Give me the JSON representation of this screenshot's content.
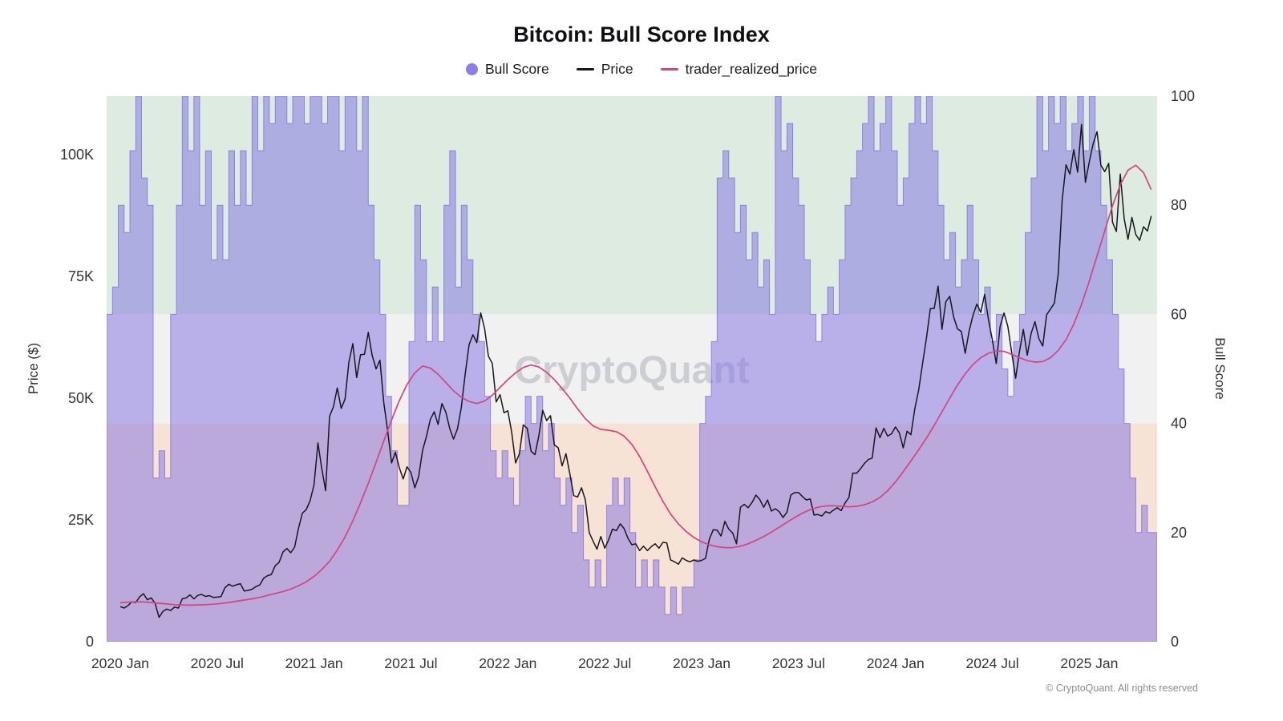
{
  "chart": {
    "title": "Bitcoin: Bull Score Index",
    "watermark": "CryptoQuant",
    "footer": "© CryptoQuant. All rights reserved"
  },
  "legend": {
    "items": [
      {
        "label": "Bull Score",
        "type": "dot",
        "color": "#8d7ce9"
      },
      {
        "label": "Price",
        "type": "line",
        "color": "#17171c"
      },
      {
        "label": "trader_realized_price",
        "type": "line",
        "color": "#d2457d"
      }
    ]
  },
  "chart_data": {
    "type": "line",
    "title": "Bitcoin: Bull Score Index",
    "x_axis": {
      "range": [
        2019.93,
        2025.35
      ],
      "tick_positions": [
        2020.0,
        2020.5,
        2021.0,
        2021.5,
        2022.0,
        2022.5,
        2023.0,
        2023.5,
        2024.0,
        2024.5,
        2025.0
      ],
      "ticks": [
        "2020 Jan",
        "2020 Jul",
        "2021 Jan",
        "2021 Jul",
        "2022 Jan",
        "2022 Jul",
        "2023 Jan",
        "2023 Jul",
        "2024 Jan",
        "2024 Jul",
        "2025 Jan"
      ]
    },
    "y_left": {
      "label": "Price ($)",
      "ticks": [
        "0",
        "25K",
        "50K",
        "75K",
        "100K"
      ],
      "tick_values": [
        0,
        25000,
        50000,
        75000,
        100000
      ],
      "max": 112000
    },
    "y_right": {
      "label": "Bull Score",
      "ticks": [
        "0",
        "20",
        "40",
        "60",
        "80",
        "100"
      ],
      "tick_values": [
        0,
        20,
        40,
        60,
        80,
        100
      ],
      "max": 100
    },
    "zones": [
      {
        "name": "bullish",
        "from": 60,
        "to": 100,
        "color": "#ddebe0"
      },
      {
        "name": "neutral",
        "from": 40,
        "to": 60,
        "color": "#f2f1f2"
      },
      {
        "name": "bearish",
        "from": 0,
        "to": 40,
        "color": "#f7e3d6"
      }
    ],
    "series": [
      {
        "name": "Bull Score",
        "axis": "right",
        "style": "step_area",
        "color": "rgba(127,112,226,0.5)",
        "stroke": "rgba(118,101,221,0.7)",
        "x_start": 2019.93,
        "x_step": 0.03,
        "values": [
          60,
          65,
          80,
          75,
          90,
          100,
          85,
          80,
          30,
          35,
          30,
          60,
          80,
          100,
          90,
          100,
          80,
          90,
          70,
          80,
          70,
          90,
          80,
          90,
          80,
          100,
          90,
          100,
          95,
          100,
          100,
          95,
          100,
          100,
          95,
          100,
          100,
          95,
          100,
          100,
          90,
          100,
          100,
          90,
          100,
          80,
          70,
          60,
          45,
          35,
          25,
          25,
          55,
          80,
          70,
          55,
          65,
          55,
          80,
          90,
          65,
          80,
          70,
          60,
          55,
          45,
          35,
          30,
          35,
          30,
          25,
          35,
          45,
          40,
          45,
          35,
          40,
          30,
          25,
          30,
          20,
          25,
          15,
          10,
          15,
          10,
          25,
          30,
          25,
          30,
          20,
          10,
          15,
          10,
          15,
          10,
          5,
          10,
          5,
          10,
          10,
          15,
          40,
          45,
          55,
          85,
          90,
          85,
          75,
          80,
          70,
          75,
          65,
          70,
          60,
          100,
          90,
          95,
          85,
          80,
          70,
          60,
          55,
          60,
          65,
          60,
          70,
          80,
          85,
          90,
          95,
          100,
          90,
          95,
          100,
          90,
          80,
          85,
          95,
          100,
          95,
          100,
          90,
          80,
          70,
          75,
          65,
          70,
          80,
          70,
          60,
          65,
          55,
          60,
          50,
          45,
          55,
          60,
          75,
          85,
          100,
          90,
          100,
          95,
          100,
          90,
          95,
          100,
          90,
          100,
          90,
          80,
          70,
          60,
          50,
          40,
          30,
          20,
          25,
          20,
          20
        ]
      },
      {
        "name": "Price",
        "axis": "left",
        "style": "line",
        "color": "#17171c",
        "x_start": 2020.0,
        "x_step": 0.02,
        "values": [
          7200,
          6900,
          7400,
          8200,
          8050,
          9200,
          9850,
          8600,
          9000,
          7900,
          5000,
          6200,
          6700,
          6400,
          7100,
          6900,
          8800,
          9000,
          9600,
          8800,
          9500,
          9700,
          9300,
          9450,
          9100,
          9150,
          9250,
          11050,
          11800,
          11400,
          11700,
          11900,
          10400,
          10550,
          10750,
          11300,
          11650,
          13050,
          13550,
          13800,
          15600,
          16300,
          18400,
          19150,
          18250,
          19400,
          23300,
          26400,
          27100,
          29000,
          32200,
          40800,
          35500,
          31000,
          46300,
          48200,
          52100,
          47900,
          49800,
          57400,
          61200,
          54200,
          58900,
          59000,
          63500,
          58800,
          56000,
          57800,
          49100,
          43200,
          36700,
          38900,
          35700,
          33400,
          35900,
          34700,
          31600,
          33900,
          39300,
          42100,
          45600,
          47200,
          44600,
          48900,
          47100,
          43800,
          41600,
          43700,
          48100,
          54900,
          61000,
          63000,
          61400,
          67500,
          64300,
          58600,
          57100,
          49200,
          50700,
          47000,
          47400,
          43000,
          36700,
          38600,
          44500,
          43800,
          39100,
          38400,
          42300,
          47500,
          45400,
          46400,
          40400,
          39800,
          36100,
          38600,
          34400,
          30000,
          29700,
          31600,
          29100,
          22400,
          20600,
          19000,
          21600,
          19200,
          20900,
          23100,
          22800,
          24200,
          23200,
          21200,
          19900,
          20100,
          18700,
          19600,
          18700,
          19500,
          20100,
          19200,
          20400,
          20300,
          16800,
          16400,
          15900,
          17200,
          16700,
          16400,
          16800,
          16500,
          16700,
          17100,
          21100,
          23000,
          22900,
          21700,
          24700,
          23100,
          22300,
          20100,
          27600,
          28200,
          27500,
          28600,
          30100,
          29200,
          27600,
          29100,
          26800,
          27300,
          26700,
          25500,
          26600,
          30100,
          30600,
          30600,
          29800,
          29100,
          29300,
          26000,
          26100,
          25800,
          26700,
          26400,
          27000,
          27500,
          26900,
          28500,
          29600,
          34600,
          34600,
          35500,
          36600,
          37400,
          37700,
          43900,
          41900,
          43800,
          42200,
          42700,
          44100,
          42900,
          39800,
          43200,
          42500,
          47900,
          51700,
          57100,
          62400,
          68400,
          68400,
          73000,
          64100,
          69800,
          70900,
          66700,
          64200,
          63700,
          59200,
          63800,
          67000,
          69300,
          67600,
          71300,
          66100,
          61900,
          57100,
          64700,
          67500,
          64700,
          59300,
          54100,
          59600,
          64100,
          58800,
          63300,
          65700,
          62200,
          60700,
          67100,
          68300,
          69500,
          75500,
          90600,
          97900,
          96000,
          101000,
          96400,
          106200,
          94300,
          98500,
          102200,
          104700,
          97800,
          96500,
          98200,
          86100,
          84200,
          96000,
          86900,
          82600,
          87100,
          83600,
          82400,
          85200,
          84300,
          87400
        ]
      },
      {
        "name": "trader_realized_price",
        "axis": "left",
        "style": "line",
        "color": "#d2457d",
        "x_start": 2020.0,
        "x_step": 0.04,
        "values": [
          8000,
          8100,
          8200,
          8150,
          8050,
          7900,
          7750,
          7600,
          7550,
          7500,
          7550,
          7600,
          7700,
          7850,
          8050,
          8300,
          8550,
          8800,
          9100,
          9500,
          9900,
          10300,
          10800,
          11500,
          12300,
          13400,
          14800,
          16500,
          18800,
          21500,
          24800,
          28500,
          32500,
          36800,
          41200,
          45500,
          49500,
          52800,
          55200,
          56600,
          56200,
          54900,
          53200,
          51500,
          50200,
          49300,
          48900,
          49400,
          50600,
          52200,
          53800,
          55200,
          56300,
          56800,
          56400,
          55300,
          53800,
          52000,
          50000,
          47800,
          45800,
          44300,
          43600,
          43400,
          43100,
          42200,
          40500,
          38000,
          35000,
          31800,
          28800,
          26200,
          24200,
          22600,
          21400,
          20500,
          19900,
          19500,
          19300,
          19300,
          19600,
          20100,
          20800,
          21600,
          22500,
          23500,
          24500,
          25500,
          26400,
          27100,
          27600,
          27900,
          27900,
          27800,
          27700,
          27800,
          28100,
          28700,
          29600,
          31000,
          32800,
          34900,
          37100,
          39400,
          41800,
          44400,
          47200,
          50000,
          52700,
          55000,
          56900,
          58300,
          59200,
          59700,
          59600,
          59000,
          58300,
          57700,
          57400,
          57500,
          58300,
          59800,
          62000,
          65200,
          69200,
          74000,
          79200,
          84300,
          89500,
          93800,
          96800,
          97800,
          96300,
          92800
        ]
      }
    ]
  }
}
